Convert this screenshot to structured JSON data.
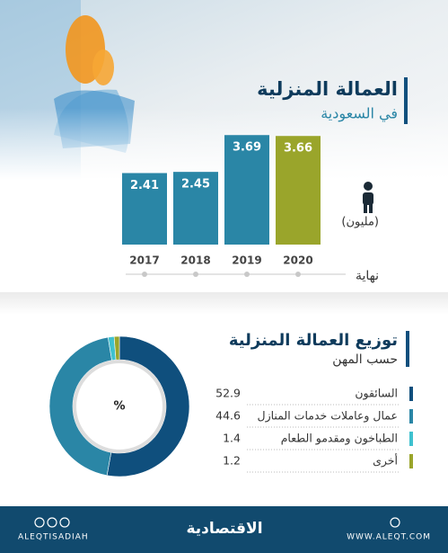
{
  "chart_data": [
    {
      "type": "bar",
      "title": "العمالة المنزلية",
      "subtitle": "في السعودية",
      "unit_label": "(مليون)",
      "x_label": "نهاية",
      "categories": [
        "2017",
        "2018",
        "2019",
        "2020"
      ],
      "values": [
        2.41,
        2.45,
        3.69,
        3.66
      ],
      "colors": [
        "#2a86a6",
        "#2a86a6",
        "#2a86a6",
        "#9aa52b"
      ]
    },
    {
      "type": "pie",
      "title": "توزيع العمالة المنزلية",
      "subtitle": "حسب المهن",
      "center_label": "%",
      "categories": [
        "السائقون",
        "عمال وعاملات خدمات المنازل",
        "الطباخون ومقدمو الطعام",
        "أخرى"
      ],
      "values": [
        52.9,
        44.6,
        1.4,
        1.2
      ],
      "colors": [
        "#0f4f7d",
        "#2a86a6",
        "#3fc1cf",
        "#9aa52b"
      ]
    }
  ],
  "footer": {
    "handle": "ALEQTISADIAH",
    "brand": "الاقتصادية",
    "website": "WWW.ALEQT.COM"
  }
}
